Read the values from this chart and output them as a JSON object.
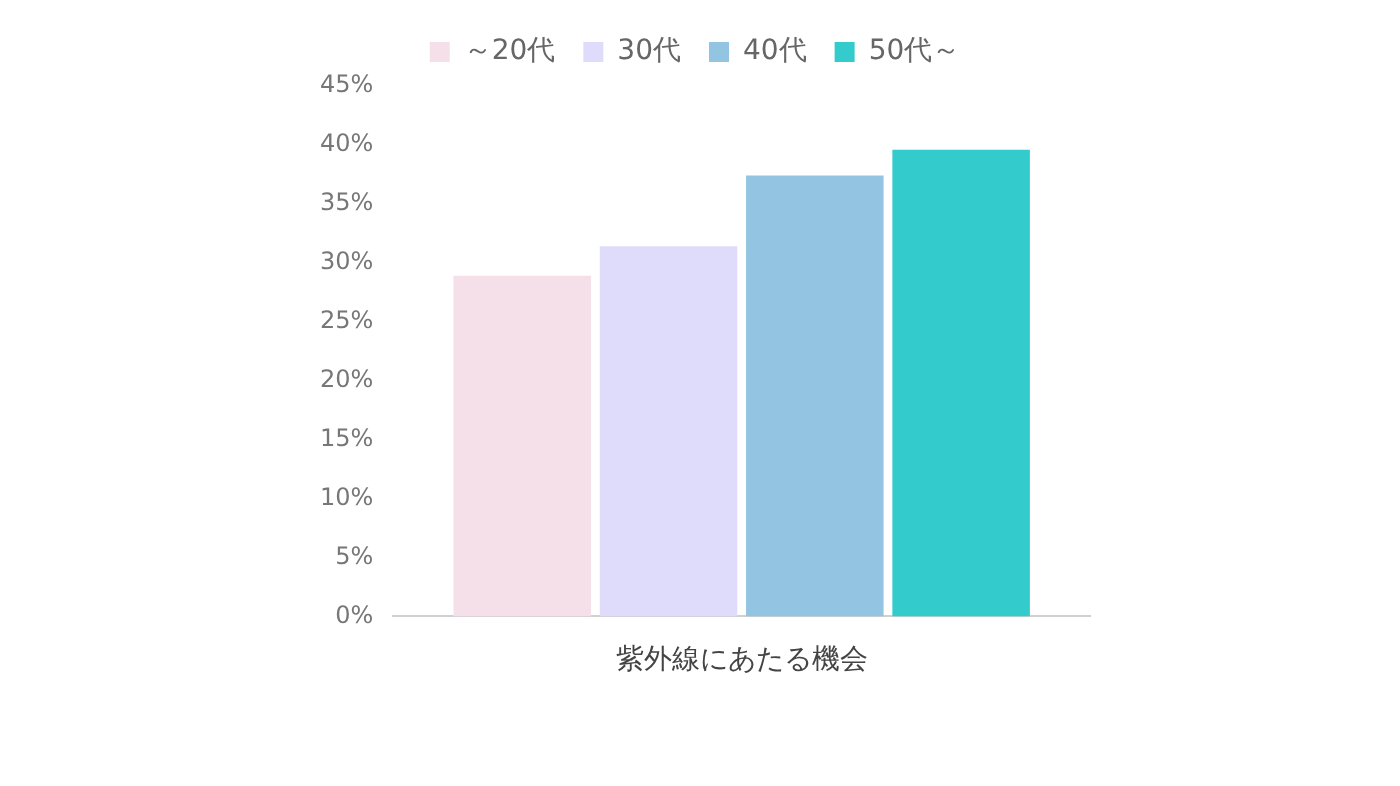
{
  "chart_data": {
    "type": "bar",
    "categories": [
      "紫外線にあたる機会"
    ],
    "series": [
      {
        "name": "～20代",
        "color": "#f5dfe8",
        "values": [
          28.9
        ]
      },
      {
        "name": "30代",
        "color": "#dedcfa",
        "values": [
          31.4
        ]
      },
      {
        "name": "40代",
        "color": "#93c4e2",
        "values": [
          37.4
        ]
      },
      {
        "name": "50代～",
        "color": "#33cbcb",
        "values": [
          39.6
        ]
      }
    ],
    "ylim": [
      0,
      45
    ],
    "yticks": [
      {
        "value": 0,
        "label": "0%"
      },
      {
        "value": 5,
        "label": "5%"
      },
      {
        "value": 10,
        "label": "10%"
      },
      {
        "value": 15,
        "label": "15%"
      },
      {
        "value": 20,
        "label": "20%"
      },
      {
        "value": 25,
        "label": "25%"
      },
      {
        "value": 30,
        "label": "30%"
      },
      {
        "value": 35,
        "label": "35%"
      },
      {
        "value": 40,
        "label": "40%"
      },
      {
        "value": 45,
        "label": "45%"
      }
    ],
    "grid": false,
    "legend": "top"
  }
}
